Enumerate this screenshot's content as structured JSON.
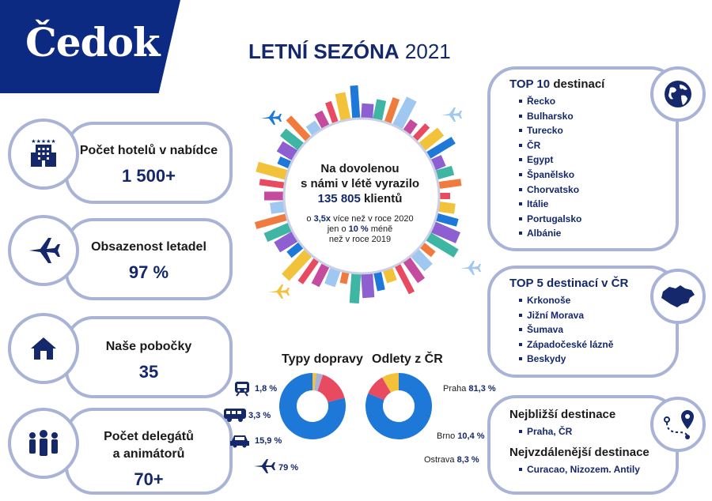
{
  "brand": {
    "logo": "Čedok",
    "color": "#0d2a82"
  },
  "title": {
    "bold": "LETNÍ SEZÓNA",
    "year": "2021"
  },
  "stats": [
    {
      "label": "Počet hotelů v nabídce",
      "value": "1 500+",
      "icon": "hotel-icon"
    },
    {
      "label": "Obsazenost letadel",
      "value": "97 %",
      "icon": "airplane-icon"
    },
    {
      "label": "Naše pobočky",
      "value": "35",
      "icon": "house-icon"
    },
    {
      "label1": "Počet delegátů",
      "label2": "a animátorů",
      "value": "70+",
      "icon": "people-icon"
    }
  ],
  "center": {
    "line1": "Na dovolenou",
    "line2": "s námi v létě vyrazilo",
    "clients_number": "135 805",
    "clients_word": "klientů",
    "sub1_pre": "o",
    "sub1_bold": "3,5x",
    "sub1_post": "více než v roce 2020",
    "sub2_pre": "jen o",
    "sub2_bold": "10 %",
    "sub2_post": "méně",
    "sub3": "než v roce 2019"
  },
  "top10": {
    "title_bold": "TOP 10",
    "title_rest": "destinací",
    "items": [
      "Řecko",
      "Bulharsko",
      "Turecko",
      "ČR",
      "Egypt",
      "Španělsko",
      "Chorvatsko",
      "Itálie",
      "Portugalsko",
      "Albánie"
    ]
  },
  "top5": {
    "title": "TOP 5 destinací v ČR",
    "items": [
      "Krkonoše",
      "Jižní Morava",
      "Šumava",
      "Západočeské lázně",
      "Beskydy"
    ]
  },
  "nearest": {
    "title": "Nejbližší destinace",
    "item": "Praha, ČR"
  },
  "farthest": {
    "title": "Nejvzdálenější destinace",
    "item": "Curacao, Nizozem. Antily"
  },
  "chart_data": [
    {
      "type": "pie",
      "title": "Typy dopravy",
      "categories": [
        "vlak",
        "autobus",
        "auto",
        "letadlo"
      ],
      "values": [
        1.8,
        3.3,
        15.9,
        79
      ],
      "labels": [
        "1,8 %",
        "3,3 %",
        "15,9 %",
        "79 %"
      ],
      "colors": [
        "#f2c23a",
        "#a9b3d6",
        "#e84a5f",
        "#1e78d7"
      ]
    },
    {
      "type": "pie",
      "title": "Odlety z ČR",
      "categories": [
        "Praha",
        "Brno",
        "Ostrava"
      ],
      "values": [
        81.3,
        10.4,
        8.3
      ],
      "labels": [
        "81,3 %",
        "10,4 %",
        "8,3 %"
      ],
      "colors": [
        "#1e78d7",
        "#e84a5f",
        "#f2c23a"
      ]
    }
  ]
}
